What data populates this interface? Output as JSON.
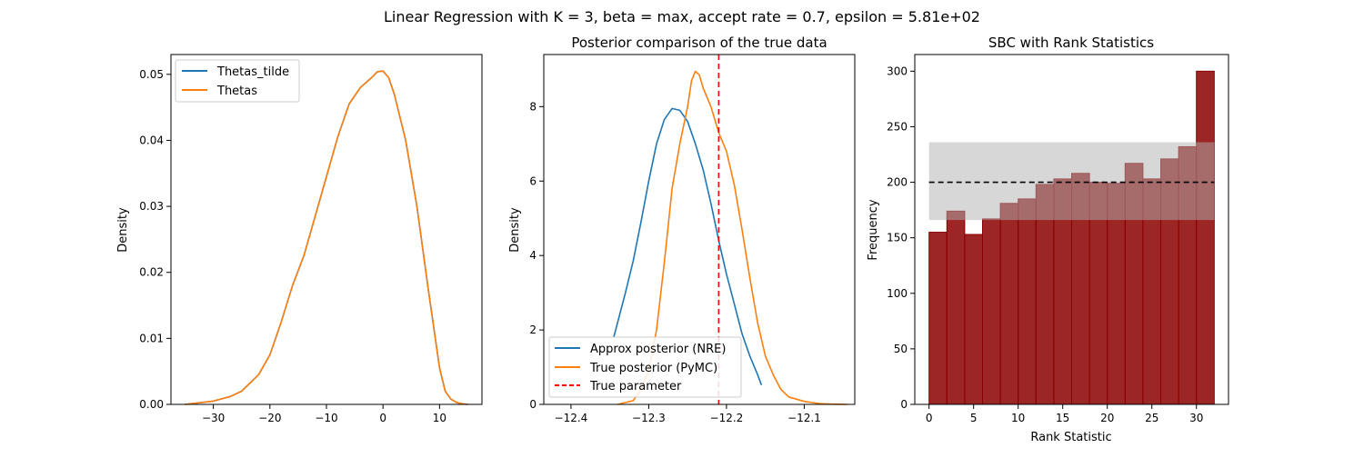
{
  "figure": {
    "suptitle": "Linear Regression with K = 3, beta = max, accept rate = 0.7, epsilon = 5.81e+02"
  },
  "chart_data": [
    {
      "type": "line",
      "title": "",
      "xlabel": "",
      "ylabel": "Density",
      "xlim": [
        -37.5,
        17.5
      ],
      "ylim": [
        0,
        0.053
      ],
      "xticks": [
        -30,
        -20,
        -10,
        0,
        10
      ],
      "xtick_labels": [
        "−30",
        "−20",
        "−10",
        "0",
        "10"
      ],
      "yticks": [
        0,
        0.01,
        0.02,
        0.03,
        0.04,
        0.05
      ],
      "ytick_labels": [
        "0.00",
        "0.01",
        "0.02",
        "0.03",
        "0.04",
        "0.05"
      ],
      "legend_position": "upper-left",
      "series": [
        {
          "name": "Thetas_tilde",
          "color": "#1f77b4",
          "x": [
            -35,
            -30,
            -27,
            -25,
            -22,
            -20,
            -18,
            -16,
            -14,
            -12,
            -10,
            -8,
            -6,
            -4,
            -2,
            -1,
            0,
            1,
            2,
            4,
            6,
            8,
            10,
            11,
            12,
            13,
            14,
            15
          ],
          "y": [
            0.0,
            0.0005,
            0.0012,
            0.002,
            0.0045,
            0.0075,
            0.0125,
            0.018,
            0.0225,
            0.0285,
            0.0345,
            0.0405,
            0.0455,
            0.048,
            0.0495,
            0.0504,
            0.0505,
            0.0495,
            0.047,
            0.04,
            0.03,
            0.0175,
            0.0055,
            0.002,
            0.0008,
            0.0003,
            0.0001,
            0.0
          ]
        },
        {
          "name": "Thetas",
          "color": "#ff7f0e",
          "x": [
            -35,
            -30,
            -27,
            -25,
            -22,
            -20,
            -18,
            -16,
            -14,
            -12,
            -10,
            -8,
            -6,
            -4,
            -2,
            -1,
            0,
            1,
            2,
            4,
            6,
            8,
            10,
            11,
            12,
            13,
            14,
            15
          ],
          "y": [
            0.0,
            0.0005,
            0.0012,
            0.002,
            0.0045,
            0.0075,
            0.0125,
            0.018,
            0.0225,
            0.0285,
            0.0345,
            0.0405,
            0.0455,
            0.048,
            0.0495,
            0.0504,
            0.0505,
            0.0495,
            0.047,
            0.04,
            0.03,
            0.0175,
            0.0055,
            0.002,
            0.0008,
            0.0003,
            0.0001,
            0.0
          ]
        }
      ]
    },
    {
      "type": "line",
      "title": "Posterior comparison of the true data",
      "xlabel": "",
      "ylabel": "Density",
      "xlim": [
        -12.435,
        -12.035
      ],
      "ylim": [
        0,
        9.4
      ],
      "xticks": [
        -12.4,
        -12.3,
        -12.2,
        -12.1
      ],
      "xtick_labels": [
        "−12.4",
        "−12.3",
        "−12.2",
        "−12.1"
      ],
      "yticks": [
        0,
        2,
        4,
        6,
        8
      ],
      "ytick_labels": [
        "0",
        "2",
        "4",
        "6",
        "8"
      ],
      "legend_position": "lower-left",
      "vline": {
        "name": "True parameter",
        "x": -12.21,
        "color": "#ff0000"
      },
      "series": [
        {
          "name": "Approx posterior (NRE)",
          "color": "#1f77b4",
          "x": [
            -12.345,
            -12.33,
            -12.32,
            -12.31,
            -12.3,
            -12.29,
            -12.28,
            -12.27,
            -12.26,
            -12.25,
            -12.24,
            -12.23,
            -12.22,
            -12.21,
            -12.2,
            -12.19,
            -12.18,
            -12.17,
            -12.16,
            -12.155
          ],
          "y": [
            1.8,
            3.0,
            3.85,
            4.9,
            6.0,
            7.0,
            7.65,
            7.95,
            7.9,
            7.6,
            7.0,
            6.3,
            5.4,
            4.4,
            3.5,
            2.7,
            1.9,
            1.3,
            0.8,
            0.52
          ]
        },
        {
          "name": "True posterior (PyMC)",
          "color": "#ff7f0e",
          "x": [
            -12.34,
            -12.32,
            -12.31,
            -12.3,
            -12.29,
            -12.28,
            -12.27,
            -12.26,
            -12.25,
            -12.245,
            -12.24,
            -12.235,
            -12.23,
            -12.22,
            -12.21,
            -12.2,
            -12.19,
            -12.18,
            -12.17,
            -12.16,
            -12.15,
            -12.14,
            -12.13,
            -12.12,
            -12.1,
            -12.08,
            -12.06,
            -12.045
          ],
          "y": [
            0.0,
            0.1,
            0.4,
            0.9,
            2.0,
            3.8,
            5.8,
            7.0,
            8.0,
            8.7,
            8.95,
            8.85,
            8.5,
            8.0,
            7.3,
            6.8,
            5.9,
            4.7,
            3.4,
            2.2,
            1.3,
            0.8,
            0.4,
            0.2,
            0.08,
            0.02,
            0.005,
            0.0
          ]
        }
      ]
    },
    {
      "type": "bar",
      "title": "SBC with Rank Statistics",
      "xlabel": "Rank Statistic",
      "ylabel": "Frequency",
      "xlim": [
        -1.6,
        33.6
      ],
      "ylim": [
        0,
        315
      ],
      "xticks": [
        0,
        5,
        10,
        15,
        20,
        25,
        30
      ],
      "xtick_labels": [
        "0",
        "5",
        "10",
        "15",
        "20",
        "25",
        "30"
      ],
      "yticks": [
        0,
        50,
        100,
        150,
        200,
        250,
        300
      ],
      "ytick_labels": [
        "0",
        "50",
        "100",
        "150",
        "200",
        "250",
        "300"
      ],
      "bin_edges": [
        0,
        2,
        4,
        6,
        8,
        10,
        12,
        14,
        16,
        18,
        20,
        22,
        24,
        26,
        28,
        30,
        32
      ],
      "values": [
        155,
        174,
        153,
        167,
        181,
        185,
        198,
        203,
        208,
        200,
        199,
        217,
        203,
        221,
        232,
        300
      ],
      "bar_color": "#8b0000",
      "band": {
        "low": 166,
        "high": 236,
        "x_range": [
          0,
          32
        ],
        "color": "#b0b0b0"
      },
      "expected_line": {
        "y": 200,
        "x_range": [
          0,
          32
        ],
        "color": "#000000"
      }
    }
  ]
}
